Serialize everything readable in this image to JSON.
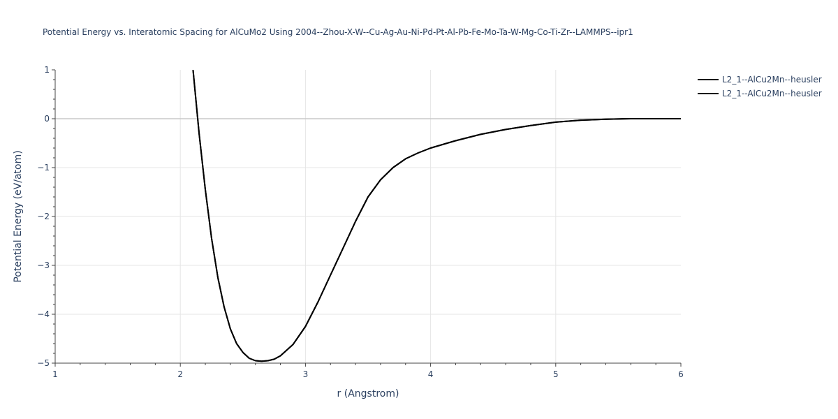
{
  "chart_data": {
    "type": "line",
    "title": "Potential Energy vs. Interatomic Spacing for AlCuMo2 Using 2004--Zhou-X-W--Cu-Ag-Au-Ni-Pd-Pt-Al-Pb-Fe-Mo-Ta-W-Mg-Co-Ti-Zr--LAMMPS--ipr1",
    "xlabel": "r (Angstrom)",
    "ylabel": "Potential Energy (eV/atom)",
    "xlim": [
      1,
      6
    ],
    "ylim": [
      -5,
      1
    ],
    "x_ticks": [
      "1",
      "2",
      "3",
      "4",
      "5",
      "6"
    ],
    "y_ticks": [
      "1",
      "0",
      "−1",
      "−2",
      "−3",
      "−4",
      "−5"
    ],
    "grid": true,
    "legend_position": "top-right",
    "colors": {
      "line": "#000000",
      "grid": "#e5e5e5",
      "zeroline": "#c8c8c8",
      "text": "#2a3f5f"
    },
    "series": [
      {
        "name": "L2_1--AlCu2Mn--heusler",
        "x": [
          2.1,
          2.15,
          2.2,
          2.25,
          2.3,
          2.35,
          2.4,
          2.45,
          2.5,
          2.55,
          2.6,
          2.65,
          2.7,
          2.75,
          2.8,
          2.9,
          3.0,
          3.1,
          3.2,
          3.3,
          3.4,
          3.5,
          3.6,
          3.7,
          3.8,
          3.9,
          4.0,
          4.2,
          4.4,
          4.6,
          4.8,
          5.0,
          5.2,
          5.4,
          5.6,
          5.8,
          6.0
        ],
        "y": [
          1.05,
          -0.3,
          -1.45,
          -2.45,
          -3.25,
          -3.85,
          -4.3,
          -4.6,
          -4.78,
          -4.9,
          -4.95,
          -4.96,
          -4.95,
          -4.92,
          -4.85,
          -4.62,
          -4.25,
          -3.75,
          -3.2,
          -2.65,
          -2.1,
          -1.6,
          -1.25,
          -1.0,
          -0.82,
          -0.7,
          -0.6,
          -0.45,
          -0.32,
          -0.22,
          -0.14,
          -0.07,
          -0.03,
          -0.01,
          0.0,
          0.0,
          0.0
        ]
      },
      {
        "name": "L2_1--AlCu2Mn--heusler",
        "x": [
          2.1,
          2.15,
          2.2,
          2.25,
          2.3,
          2.35,
          2.4,
          2.45,
          2.5,
          2.55,
          2.6,
          2.65,
          2.7,
          2.75,
          2.8,
          2.9,
          3.0,
          3.1,
          3.2,
          3.3,
          3.4,
          3.5,
          3.6,
          3.7,
          3.8,
          3.9,
          4.0,
          4.2,
          4.4,
          4.6,
          4.8,
          5.0,
          5.2,
          5.4,
          5.6,
          5.8,
          6.0
        ],
        "y": [
          1.05,
          -0.3,
          -1.45,
          -2.45,
          -3.25,
          -3.85,
          -4.3,
          -4.6,
          -4.78,
          -4.9,
          -4.95,
          -4.96,
          -4.95,
          -4.92,
          -4.85,
          -4.62,
          -4.25,
          -3.75,
          -3.2,
          -2.65,
          -2.1,
          -1.6,
          -1.25,
          -1.0,
          -0.82,
          -0.7,
          -0.6,
          -0.45,
          -0.32,
          -0.22,
          -0.14,
          -0.07,
          -0.03,
          -0.01,
          0.0,
          0.0,
          0.0
        ]
      }
    ]
  }
}
